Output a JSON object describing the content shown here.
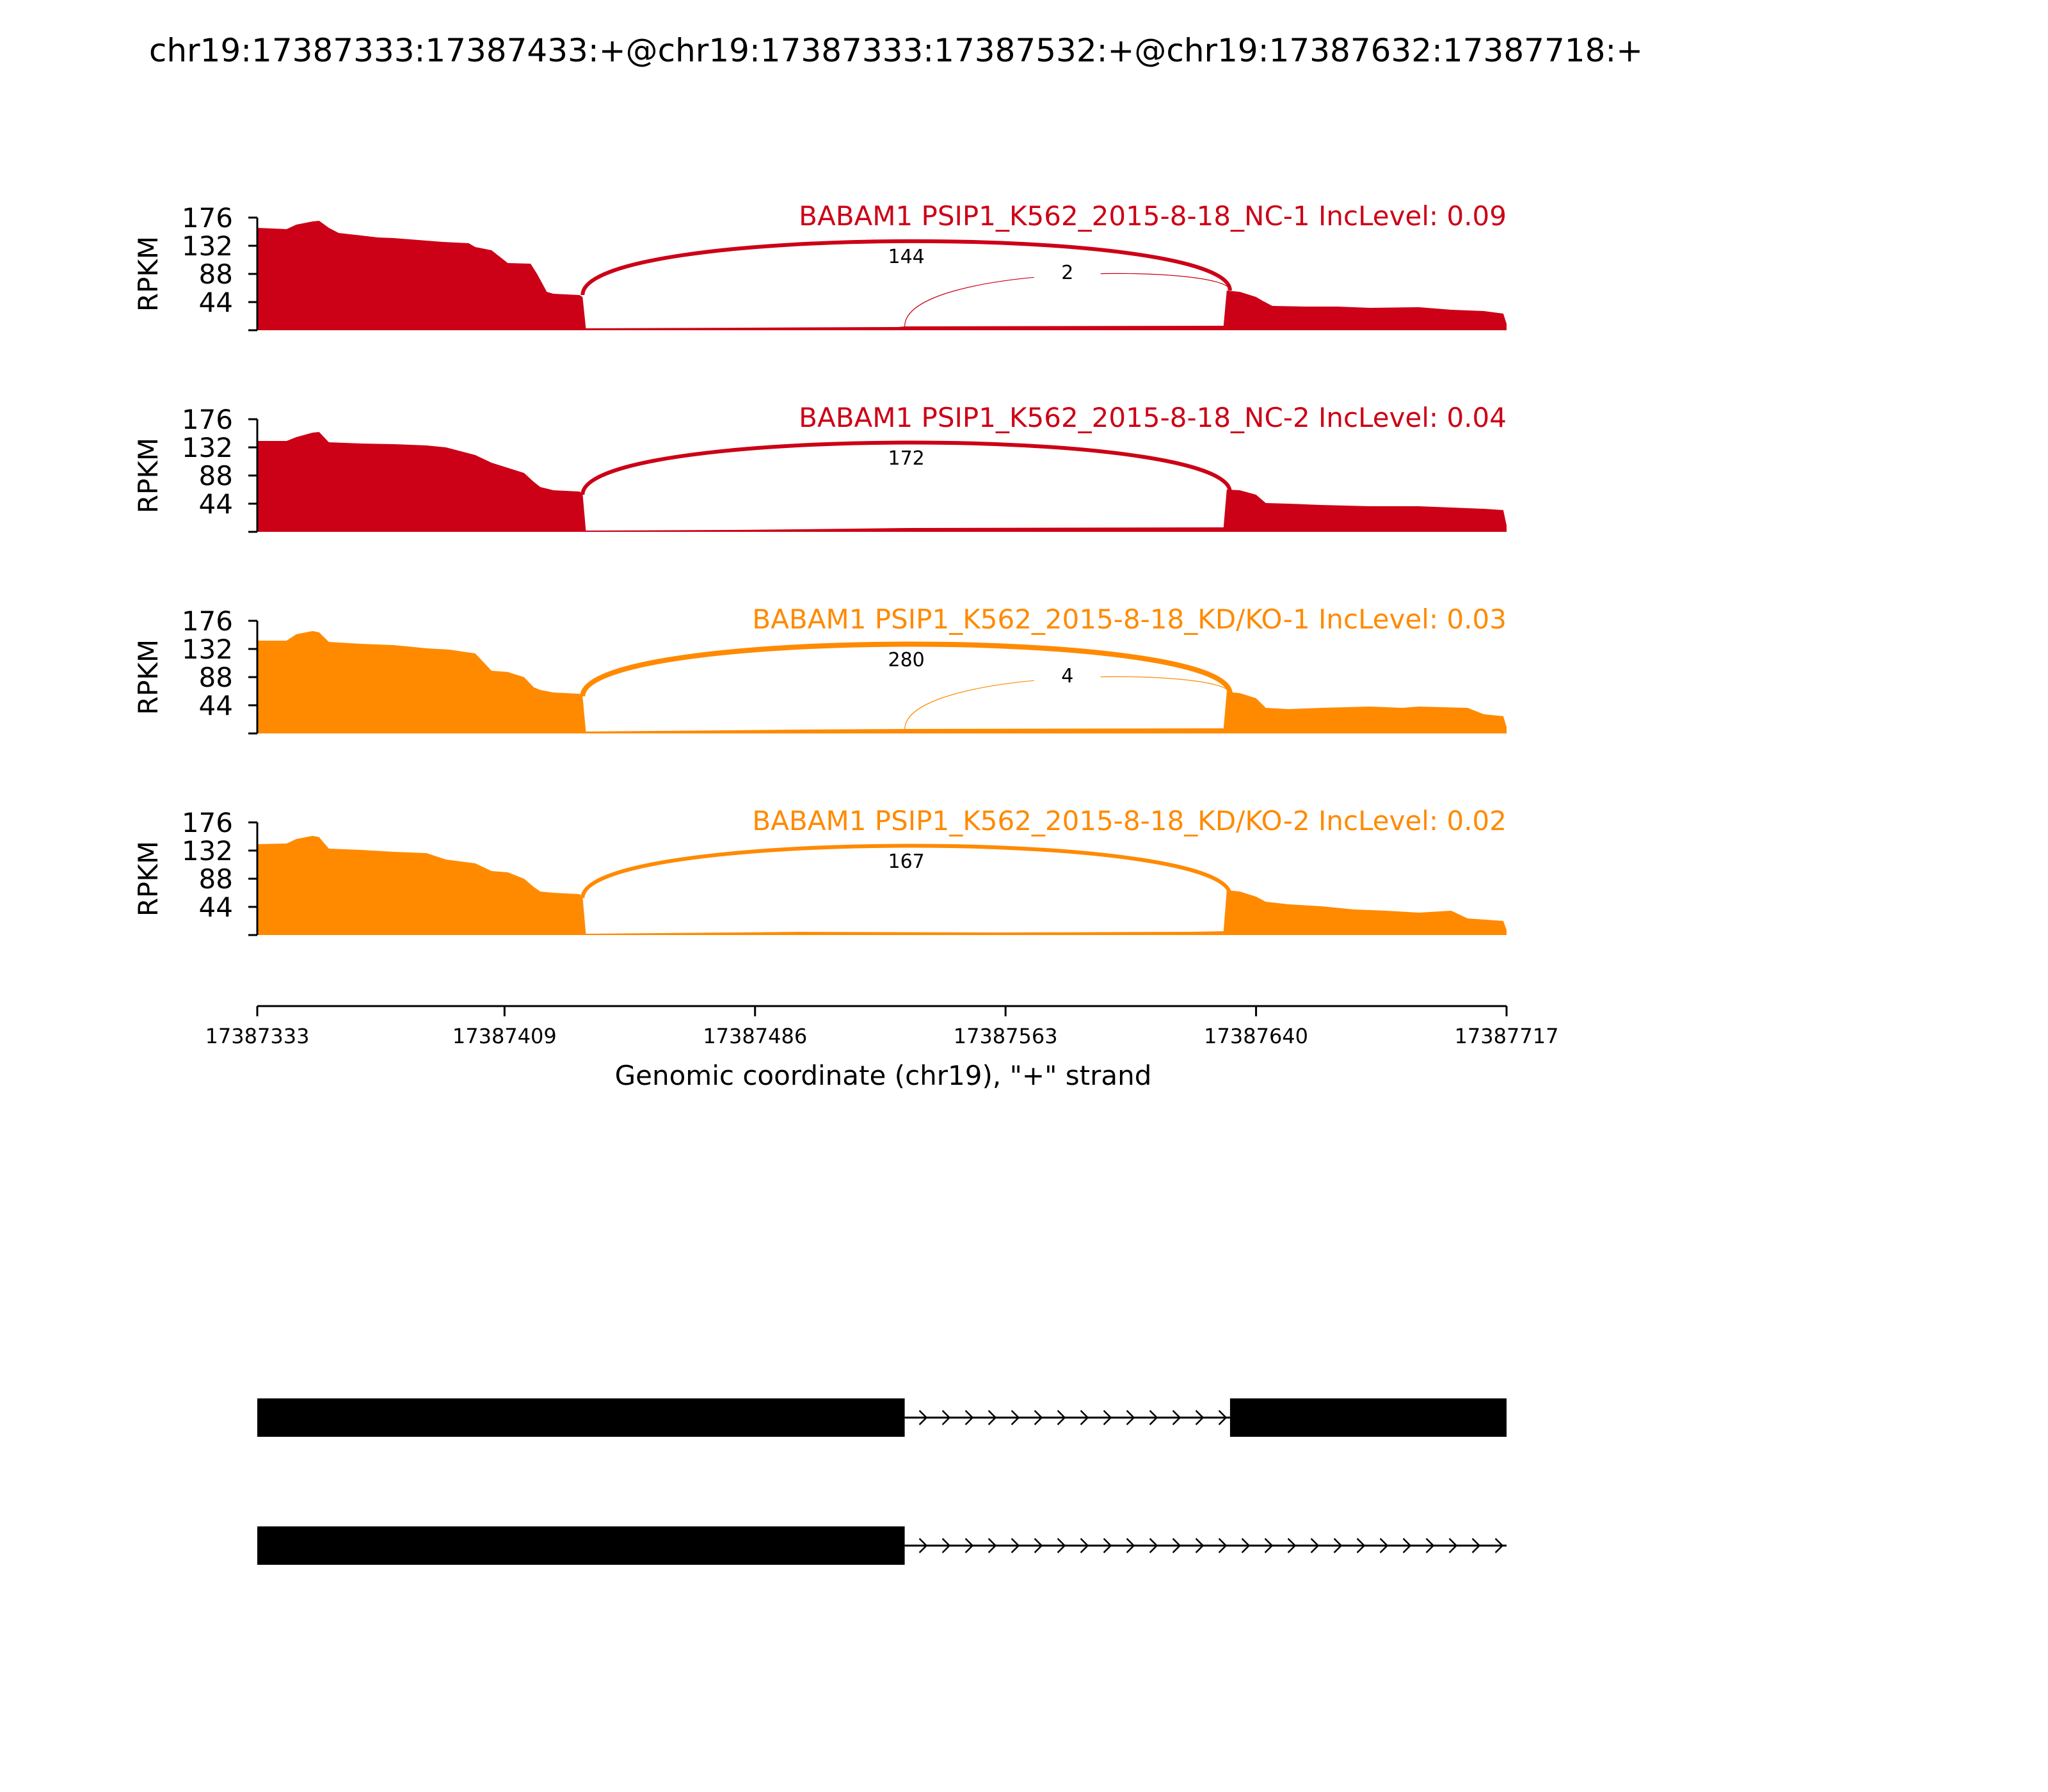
{
  "title": "chr19:17387333:17387433:+@chr19:17387333:17387532:+@chr19:17387632:17387718:+",
  "colors": {
    "nc": "#cc0016",
    "kd": "#ff8a00",
    "axis": "#000000",
    "gene": "#000000"
  },
  "chart_data": {
    "type": "area",
    "subtype": "sashimi",
    "xlabel": "Genomic coordinate (chr19), \"+\" strand",
    "ylabel": "RPKM",
    "x_ticks": [
      "17387333",
      "17387409",
      "17387486",
      "17387563",
      "17387640",
      "17387717"
    ],
    "xlim": [
      17387333,
      17387717
    ],
    "y_ticks": [
      44,
      88,
      132,
      176
    ],
    "ylim": [
      0,
      176
    ],
    "samples": [
      {
        "label": "BABAM1 PSIP1_K562_2015-8-18_NC-1 IncLevel: 0.09",
        "group": "nc",
        "coverage": [
          [
            17387333,
            160
          ],
          [
            17387342,
            158
          ],
          [
            17387345,
            165
          ],
          [
            17387350,
            170
          ],
          [
            17387352,
            171
          ],
          [
            17387355,
            160
          ],
          [
            17387358,
            152
          ],
          [
            17387365,
            148
          ],
          [
            17387370,
            145
          ],
          [
            17387375,
            144
          ],
          [
            17387385,
            140
          ],
          [
            17387390,
            138
          ],
          [
            17387398,
            136
          ],
          [
            17387400,
            130
          ],
          [
            17387405,
            125
          ],
          [
            17387410,
            105
          ],
          [
            17387417,
            104
          ],
          [
            17387419,
            88
          ],
          [
            17387422,
            60
          ],
          [
            17387424,
            57
          ],
          [
            17387432,
            55
          ],
          [
            17387433,
            52
          ],
          [
            17387434,
            3
          ],
          [
            17387530,
            5
          ],
          [
            17387532,
            6
          ],
          [
            17387630,
            7
          ],
          [
            17387631,
            62
          ],
          [
            17387635,
            60
          ],
          [
            17387640,
            52
          ],
          [
            17387642,
            46
          ],
          [
            17387645,
            38
          ],
          [
            17387655,
            37
          ],
          [
            17387665,
            37
          ],
          [
            17387675,
            35
          ],
          [
            17387690,
            36
          ],
          [
            17387695,
            34
          ],
          [
            17387700,
            32
          ],
          [
            17387710,
            30
          ],
          [
            17387716,
            26
          ],
          [
            17387717,
            10
          ]
        ],
        "junctions": [
          {
            "from": 17387433,
            "to": 17387632,
            "count": "144",
            "count_value": 144
          },
          {
            "from": 17387532,
            "to": 17387632,
            "count": "2",
            "count_value": 2
          }
        ]
      },
      {
        "label": "BABAM1 PSIP1_K562_2015-8-18_NC-2 IncLevel: 0.04",
        "group": "nc",
        "coverage": [
          [
            17387333,
            142
          ],
          [
            17387342,
            142
          ],
          [
            17387345,
            148
          ],
          [
            17387350,
            155
          ],
          [
            17387352,
            156
          ],
          [
            17387355,
            140
          ],
          [
            17387365,
            138
          ],
          [
            17387375,
            137
          ],
          [
            17387385,
            135
          ],
          [
            17387391,
            132
          ],
          [
            17387400,
            120
          ],
          [
            17387405,
            108
          ],
          [
            17387410,
            100
          ],
          [
            17387415,
            92
          ],
          [
            17387418,
            78
          ],
          [
            17387420,
            70
          ],
          [
            17387424,
            65
          ],
          [
            17387432,
            63
          ],
          [
            17387433,
            60
          ],
          [
            17387434,
            2
          ],
          [
            17387480,
            3
          ],
          [
            17387500,
            4
          ],
          [
            17387533,
            6
          ],
          [
            17387630,
            7
          ],
          [
            17387631,
            66
          ],
          [
            17387635,
            65
          ],
          [
            17387640,
            58
          ],
          [
            17387643,
            45
          ],
          [
            17387650,
            44
          ],
          [
            17387660,
            42
          ],
          [
            17387675,
            40
          ],
          [
            17387690,
            40
          ],
          [
            17387700,
            38
          ],
          [
            17387710,
            36
          ],
          [
            17387716,
            34
          ],
          [
            17387717,
            10
          ]
        ],
        "junctions": [
          {
            "from": 17387433,
            "to": 17387632,
            "count": "172",
            "count_value": 172
          }
        ]
      },
      {
        "label": "BABAM1 PSIP1_K562_2015-8-18_KD/KO-1 IncLevel: 0.03",
        "group": "kd",
        "coverage": [
          [
            17387333,
            145
          ],
          [
            17387342,
            145
          ],
          [
            17387345,
            155
          ],
          [
            17387350,
            160
          ],
          [
            17387352,
            158
          ],
          [
            17387355,
            143
          ],
          [
            17387365,
            140
          ],
          [
            17387375,
            138
          ],
          [
            17387385,
            133
          ],
          [
            17387392,
            131
          ],
          [
            17387400,
            125
          ],
          [
            17387405,
            98
          ],
          [
            17387410,
            96
          ],
          [
            17387415,
            88
          ],
          [
            17387418,
            72
          ],
          [
            17387420,
            68
          ],
          [
            17387424,
            64
          ],
          [
            17387432,
            62
          ],
          [
            17387433,
            58
          ],
          [
            17387434,
            3
          ],
          [
            17387500,
            6
          ],
          [
            17387532,
            7
          ],
          [
            17387630,
            8
          ],
          [
            17387631,
            65
          ],
          [
            17387635,
            63
          ],
          [
            17387640,
            55
          ],
          [
            17387643,
            40
          ],
          [
            17387650,
            38
          ],
          [
            17387660,
            40
          ],
          [
            17387675,
            42
          ],
          [
            17387685,
            40
          ],
          [
            17387690,
            42
          ],
          [
            17387705,
            40
          ],
          [
            17387710,
            30
          ],
          [
            17387716,
            27
          ],
          [
            17387717,
            10
          ]
        ],
        "junctions": [
          {
            "from": 17387433,
            "to": 17387632,
            "count": "280",
            "count_value": 280
          },
          {
            "from": 17387532,
            "to": 17387632,
            "count": "4",
            "count_value": 4
          }
        ]
      },
      {
        "label": "BABAM1 PSIP1_K562_2015-8-18_KD/KO-2 IncLevel: 0.02",
        "group": "kd",
        "coverage": [
          [
            17387333,
            142
          ],
          [
            17387342,
            143
          ],
          [
            17387345,
            150
          ],
          [
            17387350,
            155
          ],
          [
            17387352,
            153
          ],
          [
            17387355,
            135
          ],
          [
            17387365,
            133
          ],
          [
            17387375,
            130
          ],
          [
            17387385,
            128
          ],
          [
            17387391,
            118
          ],
          [
            17387400,
            112
          ],
          [
            17387405,
            100
          ],
          [
            17387410,
            98
          ],
          [
            17387415,
            88
          ],
          [
            17387418,
            75
          ],
          [
            17387420,
            68
          ],
          [
            17387424,
            66
          ],
          [
            17387432,
            64
          ],
          [
            17387433,
            60
          ],
          [
            17387434,
            2
          ],
          [
            17387480,
            4
          ],
          [
            17387500,
            5
          ],
          [
            17387560,
            4
          ],
          [
            17387620,
            5
          ],
          [
            17387630,
            6
          ],
          [
            17387631,
            70
          ],
          [
            17387635,
            68
          ],
          [
            17387640,
            60
          ],
          [
            17387643,
            52
          ],
          [
            17387650,
            48
          ],
          [
            17387660,
            45
          ],
          [
            17387670,
            40
          ],
          [
            17387680,
            38
          ],
          [
            17387690,
            35
          ],
          [
            17387700,
            38
          ],
          [
            17387705,
            26
          ],
          [
            17387716,
            22
          ],
          [
            17387717,
            8
          ]
        ],
        "junctions": [
          {
            "from": 17387433,
            "to": 17387632,
            "count": "167",
            "count_value": 167
          }
        ]
      }
    ],
    "isoforms": [
      {
        "exons": [
          [
            17387333,
            17387532
          ],
          [
            17387632,
            17387718
          ]
        ]
      },
      {
        "exons": [
          [
            17387333,
            17387532
          ]
        ],
        "intron_to": 17387718
      }
    ]
  }
}
